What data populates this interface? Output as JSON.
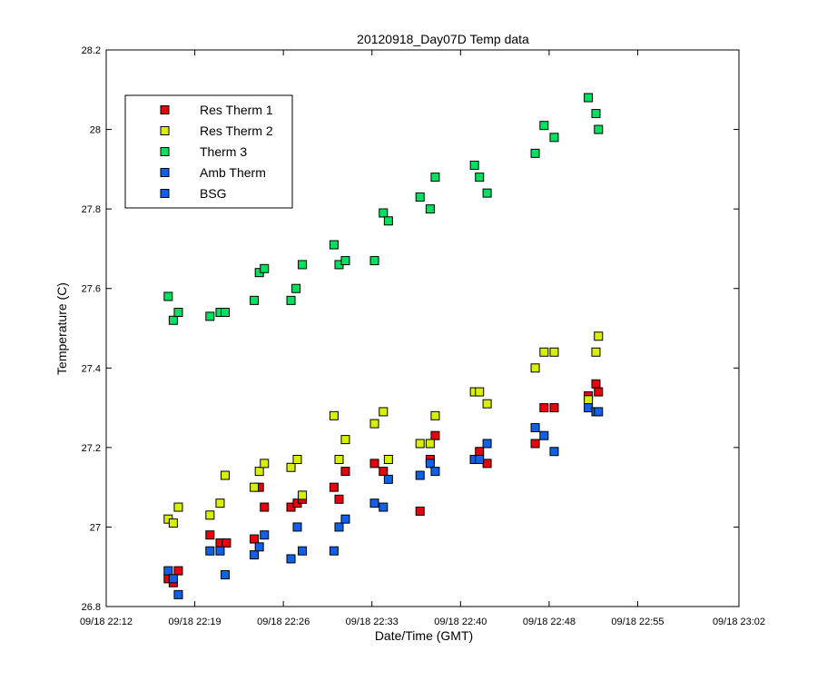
{
  "chart_data": {
    "type": "scatter",
    "title": "20120918_Day07D Temp data",
    "xlabel": "Date/Time (GMT)",
    "ylabel": "Temperature (C)",
    "x_unit": "minutes past 09/18 22:12",
    "xlim": [
      0,
      50
    ],
    "ylim": [
      26.8,
      28.2
    ],
    "x_ticks": [
      0,
      7,
      14,
      21,
      28,
      35,
      42,
      50
    ],
    "x_tick_labels": [
      "09/18 22:12",
      "09/18 22:19",
      "09/18 22:26",
      "09/18 22:33",
      "09/18 22:40",
      "09/18 22:48",
      "09/18 22:55",
      "09/18 23:02"
    ],
    "y_ticks": [
      26.8,
      27.0,
      27.2,
      27.4,
      27.6,
      27.8,
      28.0,
      28.2
    ],
    "y_tick_labels": [
      "26.8",
      "27",
      "27.2",
      "27.4",
      "27.6",
      "27.8",
      "28",
      "28.2"
    ],
    "grid": false,
    "legend_position": "top-left",
    "series": [
      {
        "name": "Res Therm 1",
        "color": "#e8000b",
        "points": [
          [
            4.9,
            26.87
          ],
          [
            5.3,
            26.86
          ],
          [
            5.7,
            26.89
          ],
          [
            8.2,
            26.98
          ],
          [
            9.0,
            26.96
          ],
          [
            9.5,
            26.96
          ],
          [
            11.7,
            26.97
          ],
          [
            12.1,
            27.1
          ],
          [
            12.5,
            27.05
          ],
          [
            14.6,
            27.05
          ],
          [
            15.1,
            27.06
          ],
          [
            15.5,
            27.07
          ],
          [
            18.0,
            27.1
          ],
          [
            18.4,
            27.07
          ],
          [
            18.9,
            27.14
          ],
          [
            21.2,
            27.16
          ],
          [
            21.9,
            27.14
          ],
          [
            24.8,
            27.04
          ],
          [
            25.6,
            27.17
          ],
          [
            26.0,
            27.23
          ],
          [
            29.1,
            27.17
          ],
          [
            29.5,
            27.19
          ],
          [
            30.1,
            27.16
          ],
          [
            33.9,
            27.21
          ],
          [
            34.6,
            27.3
          ],
          [
            35.4,
            27.3
          ],
          [
            38.1,
            27.33
          ],
          [
            38.7,
            27.36
          ],
          [
            38.9,
            27.34
          ]
        ]
      },
      {
        "name": "Res Therm 2",
        "color": "#d8f000",
        "points": [
          [
            4.9,
            27.02
          ],
          [
            5.3,
            27.01
          ],
          [
            5.7,
            27.05
          ],
          [
            8.2,
            27.03
          ],
          [
            9.0,
            27.06
          ],
          [
            9.4,
            27.13
          ],
          [
            11.7,
            27.1
          ],
          [
            12.1,
            27.14
          ],
          [
            12.5,
            27.16
          ],
          [
            14.6,
            27.15
          ],
          [
            15.1,
            27.17
          ],
          [
            15.5,
            27.08
          ],
          [
            18.0,
            27.28
          ],
          [
            18.4,
            27.17
          ],
          [
            18.9,
            27.22
          ],
          [
            21.2,
            27.26
          ],
          [
            21.9,
            27.29
          ],
          [
            22.3,
            27.17
          ],
          [
            24.8,
            27.21
          ],
          [
            25.6,
            27.21
          ],
          [
            26.0,
            27.28
          ],
          [
            29.1,
            27.34
          ],
          [
            29.5,
            27.34
          ],
          [
            30.1,
            27.31
          ],
          [
            33.9,
            27.4
          ],
          [
            34.6,
            27.44
          ],
          [
            35.4,
            27.44
          ],
          [
            38.1,
            27.32
          ],
          [
            38.7,
            27.44
          ],
          [
            38.9,
            27.48
          ]
        ]
      },
      {
        "name": "Therm 3",
        "color": "#00e060",
        "points": [
          [
            4.9,
            27.58
          ],
          [
            5.3,
            27.52
          ],
          [
            5.7,
            27.54
          ],
          [
            8.2,
            27.53
          ],
          [
            9.0,
            27.54
          ],
          [
            9.4,
            27.54
          ],
          [
            11.7,
            27.57
          ],
          [
            12.1,
            27.64
          ],
          [
            12.5,
            27.65
          ],
          [
            14.6,
            27.57
          ],
          [
            15.0,
            27.6
          ],
          [
            15.5,
            27.66
          ],
          [
            18.0,
            27.71
          ],
          [
            18.4,
            27.66
          ],
          [
            18.9,
            27.67
          ],
          [
            21.2,
            27.67
          ],
          [
            21.9,
            27.79
          ],
          [
            22.3,
            27.77
          ],
          [
            24.8,
            27.83
          ],
          [
            25.6,
            27.8
          ],
          [
            26.0,
            27.88
          ],
          [
            29.1,
            27.91
          ],
          [
            29.5,
            27.88
          ],
          [
            30.1,
            27.84
          ],
          [
            33.9,
            27.94
          ],
          [
            34.6,
            28.01
          ],
          [
            35.4,
            27.98
          ],
          [
            38.1,
            28.08
          ],
          [
            38.7,
            28.04
          ],
          [
            38.9,
            28.0
          ]
        ]
      },
      {
        "name": "Amb Therm",
        "color": "#1060e8",
        "points": [
          [
            4.9,
            26.89
          ],
          [
            5.3,
            26.87
          ],
          [
            5.7,
            26.83
          ],
          [
            8.2,
            26.94
          ],
          [
            9.0,
            26.94
          ],
          [
            9.4,
            26.88
          ],
          [
            11.7,
            26.93
          ],
          [
            12.1,
            26.95
          ],
          [
            12.5,
            26.98
          ],
          [
            14.6,
            26.92
          ],
          [
            15.1,
            27.0
          ],
          [
            15.5,
            26.94
          ],
          [
            18.0,
            26.94
          ],
          [
            18.4,
            27.0
          ],
          [
            18.9,
            27.02
          ],
          [
            21.2,
            27.06
          ],
          [
            21.9,
            27.05
          ],
          [
            22.3,
            27.12
          ],
          [
            24.8,
            27.13
          ],
          [
            25.6,
            27.16
          ],
          [
            26.0,
            27.14
          ],
          [
            29.1,
            27.17
          ],
          [
            29.5,
            27.17
          ],
          [
            30.1,
            27.21
          ],
          [
            33.9,
            27.25
          ],
          [
            34.6,
            27.23
          ],
          [
            35.4,
            27.19
          ],
          [
            38.1,
            27.3
          ],
          [
            38.7,
            27.29
          ],
          [
            38.9,
            27.29
          ]
        ]
      },
      {
        "name": "BSG",
        "color": "#1060e8",
        "points": []
      }
    ]
  }
}
